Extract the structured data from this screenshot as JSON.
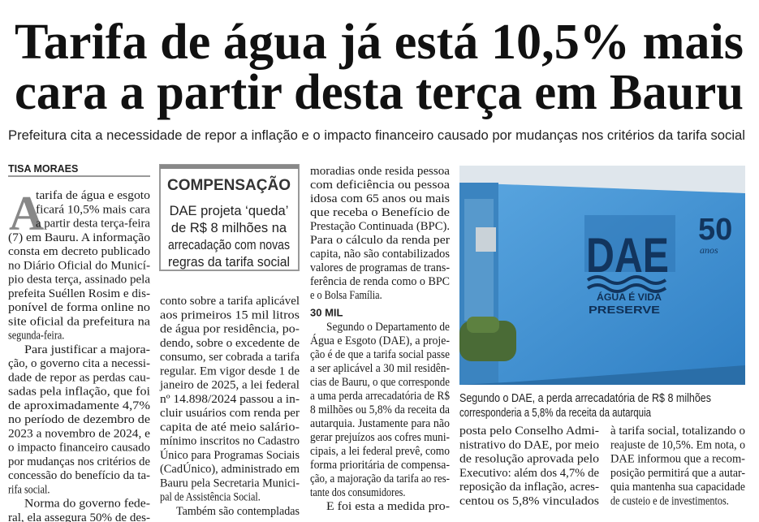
{
  "headline": {
    "lines": [
      "Tarifa de água já está 10,5% mais",
      "cara a partir desta terça em Bauru"
    ]
  },
  "subtitle": "Prefeitura cita a necessidade de repor a inflação e o impacto financeiro causado por mudanças nos critérios da tarifa social",
  "byline": "TISA MORAES",
  "sidebar": {
    "label": "COMPENSAÇÃO",
    "lines": [
      "DAE projeta ‘queda’",
      "de R$ 8 milhões na",
      "arrecadação com novas",
      "regras da tarifa social"
    ]
  },
  "photo": {
    "sign": {
      "logo": "DAE",
      "number": "50",
      "years": "anos",
      "motto": "ÁGUA É VIDA",
      "motto2": "PRESERVE"
    },
    "caption": {
      "lines": [
        "Segundo o DAE, a perda arrecadatória de R$ 8 milhões",
        "corresponderia a 5,8% da receita da autarquia"
      ]
    }
  },
  "columns": [
    {
      "blocks": [
        {
          "drop_cap": "A",
          "lines": [
            "tarifa de água e esgoto",
            "ficará 10,5% mais cara",
            "a partir desta terça-feira",
            "(7) em Bauru. A informação",
            "consta em decreto publicado",
            "no Diário Oficial do Municí-",
            "pio desta terça, assinado pela",
            "prefeita Suéllen Rosim e dis-",
            "ponível de forma online no",
            "site oficial da prefeitura na",
            "segunda-feira."
          ]
        },
        {
          "lines": [
            "Para justificar a majora-",
            "ção, o governo cita a necessi-",
            "dade de repor as perdas cau-",
            "sadas pela inflação, que foi",
            "de aproximadamente 4,7%",
            "no período de dezembro de",
            "2023 a novembro de 2024, e",
            "o impacto financeiro causado",
            "por mudanças nos critérios de",
            "concessão do benefício da ta-",
            "rifa social."
          ]
        },
        {
          "lines": [
            "Norma do governo fede-",
            "ral, ela assegura 50% de des-"
          ],
          "continues": true
        }
      ]
    },
    {
      "blocks": [
        {
          "lines": [
            "conto sobre a tarifa aplicável",
            "aos primeiros 15 mil litros",
            "de água por residência, po-",
            "dendo, sobre o excedente de",
            "consumo, ser cobrada a tarifa",
            "regular. Em vigor desde 1 de",
            "janeiro de 2025, a lei federal",
            "nº 14.898/2024 passou a in-",
            "cluir usuários com renda per",
            "capita de até meio salário-",
            "mínimo inscritos no Cadastro",
            "Único para Programas Sociais",
            "(CadÚnico), administrado em",
            "Bauru pela Secretaria Munici-",
            "pal de Assistência Social."
          ]
        },
        {
          "lines": [
            "Também são contempladas"
          ],
          "continues": true
        }
      ]
    },
    {
      "blocks": [
        {
          "lines": [
            "moradias onde resida pessoa",
            "com deficiência ou pessoa",
            "idosa com 65 anos ou mais",
            "que receba o Benefício de",
            "Prestação Continuada (BPC).",
            "Para o cálculo da renda per",
            "capita, não são contabilizados",
            "valores de programas de trans-",
            "ferência de renda como o BPC",
            "e o Bolsa Família."
          ]
        },
        {
          "heading": "30 MIL"
        },
        {
          "lines": [
            "Segundo o Departamento de",
            "Água e Esgoto (DAE), a proje-",
            "ção é de que a tarifa social passe",
            "a ser aplicável a 30 mil residên-",
            "cias de Bauru, o que corresponde",
            "a uma perda arrecadatória de R$",
            "8 milhões ou 5,8% da receita da",
            "autarquia. Justamente para não",
            "gerar prejuízos aos cofres muni-",
            "cipais, a lei federal prevê, como",
            "forma prioritária de compensa-",
            "ção, a majoração da tarifa ao res-",
            "tante dos consumidores."
          ]
        },
        {
          "lines": [
            "E foi esta a medida pro-"
          ],
          "continues": true
        }
      ]
    },
    {
      "blocks": [
        {
          "lines": [
            "posta pelo Conselho Admi-",
            "nistrativo do DAE, por meio",
            "de resolução aprovada pelo",
            "Executivo: além dos 4,7% de",
            "reposição da inflação, acres-",
            "centou os 5,8% vinculados"
          ],
          "continues": true
        }
      ]
    },
    {
      "blocks": [
        {
          "lines": [
            "à tarifa social, totalizando o",
            "reajuste de 10,5%. Em nota, o",
            "DAE informou que a recom-",
            "posição permitirá que a autar-",
            "quia mantenha sua capacidade",
            "de custeio e de investimentos."
          ]
        }
      ]
    }
  ]
}
